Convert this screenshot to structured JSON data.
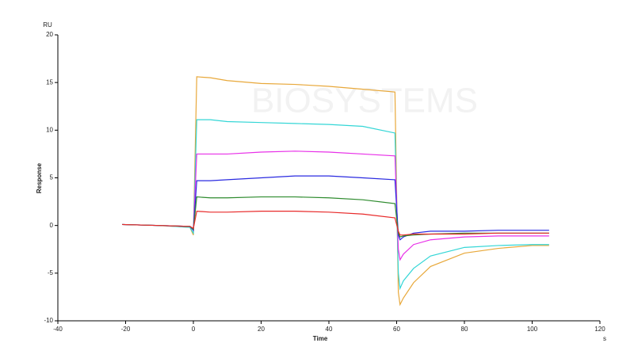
{
  "chart_data": {
    "type": "line",
    "y_unit": "RU",
    "ylabel": "Response",
    "xlabel": "Time",
    "x_unit": "s",
    "watermark": "BIOSYSTEMS",
    "x": [
      -21,
      -10,
      -1,
      0,
      1,
      5,
      10,
      20,
      30,
      40,
      50,
      59.5,
      60.5,
      61,
      62,
      65,
      70,
      80,
      90,
      100,
      105
    ],
    "series": [
      {
        "color": "#e8a83a",
        "values": [
          0.1,
          0,
          -0.2,
          -1,
          15.6,
          15.5,
          15.2,
          14.9,
          14.8,
          14.6,
          14.3,
          14.0,
          -7,
          -8.3,
          -7.6,
          -6,
          -4.3,
          -2.9,
          -2.4,
          -2.1,
          -2.1
        ]
      },
      {
        "color": "#33d6d6",
        "values": [
          0.1,
          0,
          -0.2,
          -0.8,
          11.1,
          11.1,
          10.9,
          10.8,
          10.7,
          10.6,
          10.4,
          9.7,
          -5,
          -6.6,
          -5.8,
          -4.5,
          -3.2,
          -2.3,
          -2.1,
          -2.0,
          -2.0
        ]
      },
      {
        "color": "#e830e8",
        "values": [
          0.1,
          0,
          -0.1,
          -0.5,
          7.5,
          7.5,
          7.5,
          7.7,
          7.8,
          7.7,
          7.5,
          7.3,
          -2.5,
          -3.6,
          -3.0,
          -2.0,
          -1.5,
          -1.2,
          -1.1,
          -1.1,
          -1.1
        ]
      },
      {
        "color": "#2a2ae0",
        "values": [
          0.1,
          0,
          -0.1,
          -0.5,
          4.7,
          4.7,
          4.8,
          5.0,
          5.2,
          5.2,
          5.0,
          4.8,
          -1,
          -1.5,
          -1.2,
          -0.8,
          -0.6,
          -0.6,
          -0.5,
          -0.5,
          -0.5
        ]
      },
      {
        "color": "#2e8b2e",
        "values": [
          0.1,
          0,
          -0.1,
          -0.4,
          3.0,
          2.9,
          2.9,
          3.0,
          3.0,
          2.9,
          2.7,
          2.3,
          -0.8,
          -1.2,
          -1.1,
          -1.0,
          -0.9,
          -0.8,
          -0.8,
          -0.8,
          -0.8
        ]
      },
      {
        "color": "#e82a2a",
        "values": [
          0.1,
          0,
          -0.1,
          -0.3,
          1.5,
          1.4,
          1.4,
          1.5,
          1.5,
          1.4,
          1.2,
          0.8,
          -0.6,
          -1.0,
          -1.0,
          -0.9,
          -0.9,
          -0.9,
          -0.8,
          -0.8,
          -0.8
        ]
      }
    ],
    "xlim": [
      -40,
      120
    ],
    "xticks": [
      -40,
      -20,
      0,
      20,
      40,
      60,
      80,
      100,
      120
    ],
    "ylim": [
      -10,
      20
    ],
    "yticks": [
      -10,
      -5,
      0,
      5,
      10,
      15,
      20
    ]
  }
}
